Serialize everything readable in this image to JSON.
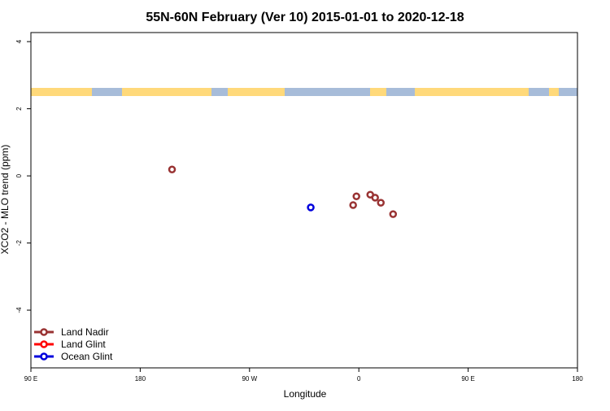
{
  "chart_data": {
    "type": "scatter",
    "title": "55N-60N February (Ver 10)   2015-01-01 to 2020-12-18",
    "x_label": "Longitude",
    "y_label": "XCO2 - MLO trend (ppm)",
    "xlim": [
      -270,
      180
    ],
    "ylim": [
      -5.72,
      4.27
    ],
    "xticks": [
      {
        "value": -270,
        "label": "90 E"
      },
      {
        "value": -180,
        "label": "180"
      },
      {
        "value": -90,
        "label": "90 W"
      },
      0,
      {
        "value": 90,
        "label": "90 E"
      },
      {
        "value": 180,
        "label": "180"
      }
    ],
    "yticks": [
      -4,
      -2,
      0,
      2,
      4
    ],
    "legend": "bottom-left",
    "series": [
      {
        "name": "Land Nadir",
        "color": "#993333",
        "x": [
          -153.8,
          -2.0,
          -4.7,
          9.4,
          13.4,
          18.1,
          28.2
        ],
        "values": [
          0.19,
          -0.61,
          -0.87,
          -0.56,
          -0.65,
          -0.8,
          -1.14
        ]
      },
      {
        "name": "Land Glint",
        "color": "#ff0000",
        "x": [],
        "values": []
      },
      {
        "name": "Ocean Glint",
        "color": "#0000dd",
        "x": [
          -39.6
        ],
        "values": [
          -0.94
        ]
      }
    ]
  }
}
